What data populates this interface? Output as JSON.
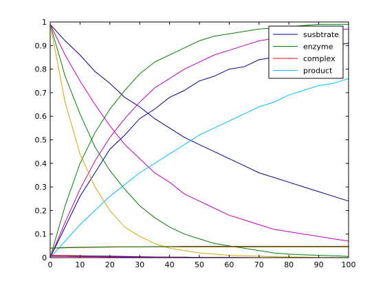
{
  "chart_data": {
    "type": "line",
    "title": "",
    "xlabel": "",
    "ylabel": "",
    "xlim": [
      0,
      100
    ],
    "ylim": [
      0,
      1
    ],
    "grid": false,
    "legend_position": "top-right",
    "x_ticks": [
      0,
      10,
      20,
      30,
      40,
      50,
      60,
      70,
      80,
      90,
      100
    ],
    "y_ticks": [
      0,
      0.1,
      0.2,
      0.3,
      0.4,
      0.5,
      0.6,
      0.7,
      0.8,
      0.9,
      1
    ],
    "x_tick_labels": [
      "0",
      "10",
      "20",
      "30",
      "40",
      "50",
      "60",
      "70",
      "80",
      "90",
      "100"
    ],
    "y_tick_labels": [
      "0",
      "0.1",
      "0.2",
      "0.3",
      "0.4",
      "0.5",
      "0.6",
      "0.7",
      "0.8",
      "0.9",
      "1"
    ],
    "legend": [
      {
        "label": "susbtrate",
        "color": "#00008b"
      },
      {
        "label": "enzyme",
        "color": "#008000"
      },
      {
        "label": "complex",
        "color": "#ff0000"
      },
      {
        "label": "product",
        "color": "#00bfff"
      }
    ],
    "x": [
      0,
      5,
      10,
      15,
      20,
      25,
      30,
      35,
      40,
      45,
      50,
      55,
      60,
      65,
      70,
      75,
      80,
      85,
      90,
      95,
      100
    ],
    "series": [
      {
        "color": "#00008b",
        "values": [
          0.99,
          0.92,
          0.86,
          0.79,
          0.74,
          0.68,
          0.64,
          0.59,
          0.55,
          0.51,
          0.48,
          0.45,
          0.42,
          0.39,
          0.36,
          0.34,
          0.32,
          0.3,
          0.28,
          0.26,
          0.24
        ]
      },
      {
        "color": "#00008b",
        "values": [
          0.0,
          0.13,
          0.26,
          0.36,
          0.46,
          0.52,
          0.59,
          0.63,
          0.68,
          0.71,
          0.75,
          0.77,
          0.8,
          0.81,
          0.84,
          0.85,
          0.87,
          0.88,
          0.89,
          0.9,
          0.91
        ]
      },
      {
        "color": "#008000",
        "values": [
          0.99,
          0.77,
          0.61,
          0.47,
          0.37,
          0.29,
          0.22,
          0.17,
          0.13,
          0.1,
          0.08,
          0.06,
          0.05,
          0.04,
          0.03,
          0.02,
          0.015,
          0.012,
          0.01,
          0.008,
          0.005
        ]
      },
      {
        "color": "#008000",
        "values": [
          0.0,
          0.22,
          0.4,
          0.53,
          0.63,
          0.71,
          0.78,
          0.83,
          0.86,
          0.89,
          0.92,
          0.94,
          0.95,
          0.96,
          0.97,
          0.975,
          0.98,
          0.985,
          0.99,
          0.99,
          0.99
        ]
      },
      {
        "color": "#bf00bf",
        "values": [
          0.99,
          0.86,
          0.75,
          0.65,
          0.56,
          0.48,
          0.42,
          0.36,
          0.32,
          0.27,
          0.24,
          0.21,
          0.18,
          0.16,
          0.14,
          0.12,
          0.11,
          0.1,
          0.09,
          0.08,
          0.07
        ]
      },
      {
        "color": "#bf00bf",
        "values": [
          0.0,
          0.15,
          0.29,
          0.41,
          0.51,
          0.59,
          0.66,
          0.72,
          0.76,
          0.8,
          0.83,
          0.86,
          0.88,
          0.9,
          0.92,
          0.93,
          0.94,
          0.95,
          0.96,
          0.965,
          0.97
        ]
      },
      {
        "color": "#ccaa00",
        "values": [
          0.99,
          0.66,
          0.44,
          0.3,
          0.2,
          0.13,
          0.09,
          0.06,
          0.04,
          0.03,
          0.02,
          0.015,
          0.01,
          0.008,
          0.006,
          0.004,
          0.003,
          0.002,
          0.001,
          0.001,
          0.0
        ]
      },
      {
        "color": "#00bfff",
        "values": [
          0.0,
          0.07,
          0.14,
          0.2,
          0.26,
          0.31,
          0.36,
          0.4,
          0.44,
          0.48,
          0.52,
          0.55,
          0.58,
          0.61,
          0.64,
          0.66,
          0.69,
          0.71,
          0.73,
          0.74,
          0.76
        ]
      },
      {
        "color": "#ff0000",
        "values": [
          0.04,
          0.042,
          0.043,
          0.044,
          0.045,
          0.046,
          0.046,
          0.047,
          0.047,
          0.048,
          0.048,
          0.048,
          0.048,
          0.048,
          0.048,
          0.048,
          0.048,
          0.048,
          0.048,
          0.048,
          0.048
        ]
      },
      {
        "color": "#008000",
        "values": [
          0.04,
          0.043,
          0.044,
          0.045,
          0.046,
          0.046,
          0.046,
          0.046,
          0.046,
          0.046,
          0.046,
          0.046,
          0.046,
          0.046,
          0.046,
          0.046,
          0.046,
          0.046,
          0.046,
          0.046,
          0.046
        ]
      },
      {
        "color": "#00008b",
        "values": [
          0.01,
          0.009,
          0.008,
          0.007,
          0.006,
          0.005,
          0.004,
          0.003,
          0.002,
          0.002,
          0.001,
          0.001,
          0.001,
          0.0,
          0.0,
          0.0,
          0.0,
          0.0,
          0.0,
          0.0,
          0.0
        ]
      },
      {
        "color": "#ff0000",
        "values": [
          0.01,
          0.008,
          0.006,
          0.005,
          0.004,
          0.003,
          0.002,
          0.001,
          0.001,
          0.0,
          0.0,
          0.0,
          0.0,
          0.0,
          0.0,
          0.0,
          0.0,
          0.0,
          0.0,
          0.0,
          0.0
        ]
      },
      {
        "color": "#bf00bf",
        "values": [
          0.005,
          0.005,
          0.004,
          0.004,
          0.003,
          0.003,
          0.002,
          0.002,
          0.002,
          0.001,
          0.001,
          0.001,
          0.001,
          0.001,
          0.0,
          0.0,
          0.0,
          0.0,
          0.0,
          0.0,
          0.0
        ]
      }
    ]
  }
}
